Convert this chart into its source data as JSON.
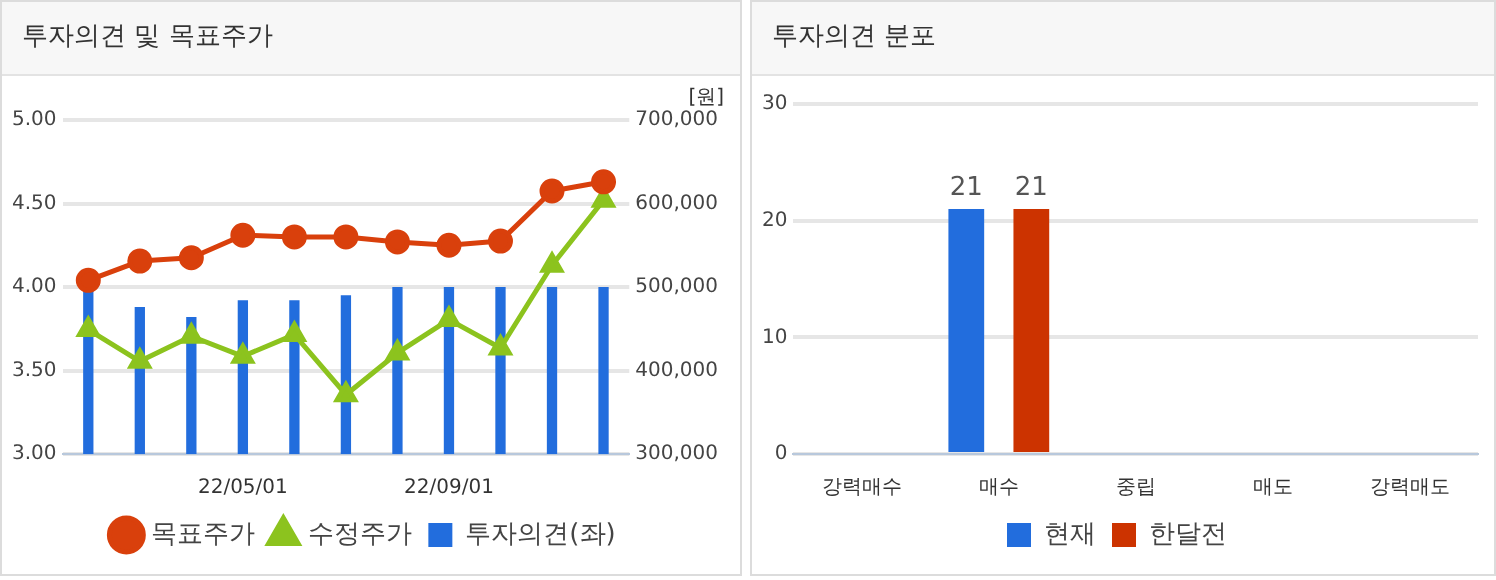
{
  "chart_data": [
    {
      "type": "bar",
      "title": "투자의견 및 목표주가",
      "categories": [
        null,
        null,
        null,
        "22/05/01",
        null,
        null,
        null,
        "22/09/01",
        null,
        null,
        null
      ],
      "y2label": "[원]",
      "ylim": [
        3,
        5
      ],
      "yticks": [
        {
          "value": 3,
          "label": "3.00"
        },
        {
          "value": 3.5,
          "label": "3.50"
        },
        {
          "value": 4,
          "label": "4.00"
        },
        {
          "value": 4.5,
          "label": "4.50"
        },
        {
          "value": 5,
          "label": "5.00"
        }
      ],
      "y2lim": [
        300000,
        700000
      ],
      "y2ticks": [
        {
          "value": 300000,
          "label": "300,000"
        },
        {
          "value": 400000,
          "label": "400,000"
        },
        {
          "value": 500000,
          "label": "500,000"
        },
        {
          "value": 600000,
          "label": "600,000"
        },
        {
          "value": 700000,
          "label": "700,000"
        }
      ],
      "grid": "y",
      "legend": "bottom",
      "series": [
        {
          "name": "투자의견(좌)",
          "color": "#226ddd",
          "values": [
            4.0,
            3.88,
            3.82,
            3.92,
            3.92,
            3.95,
            4.0,
            4.0,
            4.0,
            4.0,
            4.0
          ]
        },
        {
          "name": "목표주가",
          "type": "line",
          "axis": "y2",
          "marker": "circle",
          "color": "#d9400c",
          "values": [
            508000,
            531000,
            535000,
            562000,
            560000,
            560000,
            554000,
            550000,
            555000,
            615000,
            626000
          ]
        },
        {
          "name": "수정주가",
          "type": "line",
          "axis": "y2",
          "marker": "triangle",
          "color": "#8cc31e",
          "values": [
            449000,
            411000,
            441000,
            417000,
            443000,
            371000,
            421000,
            461000,
            427000,
            526000,
            604000
          ]
        }
      ]
    },
    {
      "type": "bar",
      "title": "투자의견 분포",
      "categories": [
        "강력매수",
        "매수",
        "중립",
        "매도",
        "강력매도"
      ],
      "ylim": [
        0,
        30
      ],
      "yticks": [
        0,
        10,
        20,
        30
      ],
      "grid": "y",
      "legend": "bottom",
      "series": [
        {
          "name": "현재",
          "color": "#226ddd",
          "values": [
            0,
            21,
            0,
            0,
            0
          ],
          "value_labels": [
            null,
            "21",
            null,
            null,
            null
          ]
        },
        {
          "name": "한달전",
          "color": "#cc3300",
          "values": [
            0,
            21,
            0,
            0,
            0
          ],
          "value_labels": [
            null,
            "21",
            null,
            null,
            null
          ]
        }
      ]
    }
  ]
}
